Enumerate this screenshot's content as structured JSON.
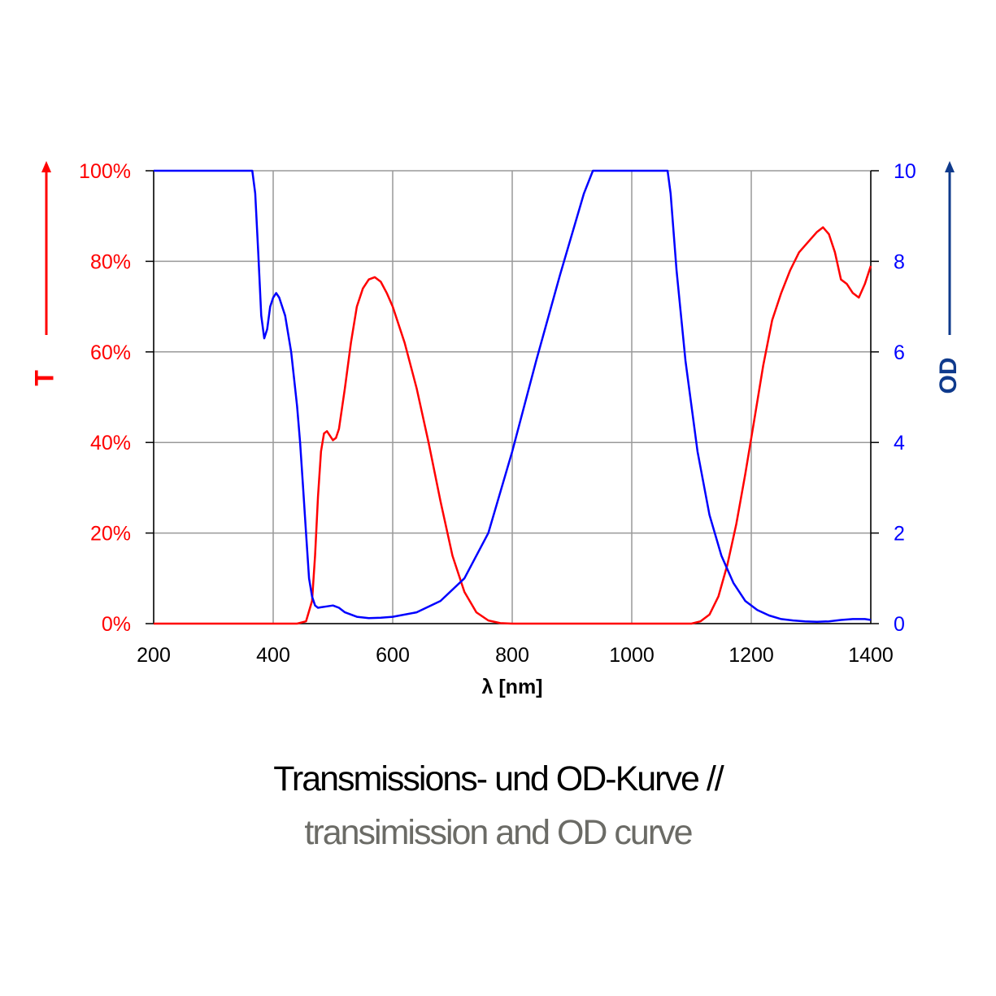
{
  "colors": {
    "transmission": "#ff0000",
    "od": "#0000ff",
    "od_label": "#0f3a8c",
    "grid": "#999999"
  },
  "caption": {
    "line1": "Transmissions- und OD-Kurve //",
    "line2": "transimission and OD curve"
  },
  "chart_data": {
    "type": "line",
    "title": "",
    "xlabel": "λ [nm]",
    "ylabel_left": "T",
    "ylabel_right": "OD",
    "xlim": [
      200,
      1400
    ],
    "ylim_left": [
      0,
      100
    ],
    "ylim_right": [
      0,
      10
    ],
    "x_ticks": [
      "200",
      "400",
      "600",
      "800",
      "1000",
      "1200",
      "1400"
    ],
    "y_left_ticks": [
      "0%",
      "20%",
      "40%",
      "60%",
      "80%",
      "100%"
    ],
    "y_right_ticks": [
      "0",
      "2",
      "4",
      "6",
      "8",
      "10"
    ],
    "grid": true,
    "series": [
      {
        "name": "T",
        "axis": "left",
        "color": "#ff0000",
        "x": [
          200,
          440,
          455,
          465,
          470,
          475,
          480,
          485,
          490,
          500,
          505,
          510,
          520,
          530,
          540,
          550,
          560,
          570,
          580,
          590,
          600,
          620,
          640,
          660,
          680,
          700,
          720,
          740,
          760,
          780,
          800,
          1100,
          1115,
          1130,
          1145,
          1160,
          1175,
          1190,
          1205,
          1220,
          1235,
          1250,
          1265,
          1280,
          1300,
          1310,
          1320,
          1330,
          1340,
          1350,
          1360,
          1370,
          1380,
          1390,
          1400
        ],
        "y": [
          0,
          0,
          0.5,
          5,
          15,
          28,
          38,
          42,
          42.5,
          40.5,
          41,
          43,
          52,
          62,
          70,
          74,
          76,
          76.5,
          75.5,
          73,
          70,
          62,
          52,
          40,
          27,
          15,
          7,
          2.5,
          0.7,
          0.1,
          0,
          0,
          0.5,
          2,
          6,
          13,
          22,
          33,
          45,
          57,
          67,
          73,
          78,
          82,
          85,
          86.5,
          87.5,
          86,
          82,
          76,
          75,
          73,
          72,
          75,
          79
        ]
      },
      {
        "name": "OD",
        "axis": "right",
        "color": "#0000ff",
        "x": [
          200,
          365,
          370,
          375,
          380,
          385,
          390,
          395,
          400,
          405,
          410,
          420,
          430,
          440,
          445,
          450,
          455,
          460,
          465,
          470,
          475,
          480,
          490,
          500,
          510,
          520,
          540,
          560,
          580,
          600,
          640,
          680,
          720,
          760,
          800,
          840,
          880,
          920,
          935,
          1060,
          1065,
          1075,
          1090,
          1110,
          1130,
          1150,
          1170,
          1190,
          1210,
          1230,
          1250,
          1270,
          1290,
          1310,
          1330,
          1350,
          1370,
          1390,
          1400
        ],
        "y": [
          10,
          10,
          9.5,
          8.2,
          6.8,
          6.3,
          6.5,
          7.0,
          7.2,
          7.3,
          7.2,
          6.8,
          6.0,
          4.8,
          4.0,
          3.0,
          2.0,
          1.0,
          0.6,
          0.4,
          0.35,
          0.36,
          0.38,
          0.4,
          0.35,
          0.25,
          0.15,
          0.12,
          0.13,
          0.15,
          0.25,
          0.5,
          1.0,
          2.0,
          3.8,
          5.8,
          7.7,
          9.5,
          10,
          10,
          9.5,
          7.8,
          5.8,
          3.8,
          2.4,
          1.5,
          0.9,
          0.5,
          0.3,
          0.18,
          0.1,
          0.07,
          0.05,
          0.04,
          0.05,
          0.08,
          0.1,
          0.1,
          0.08
        ]
      }
    ]
  }
}
